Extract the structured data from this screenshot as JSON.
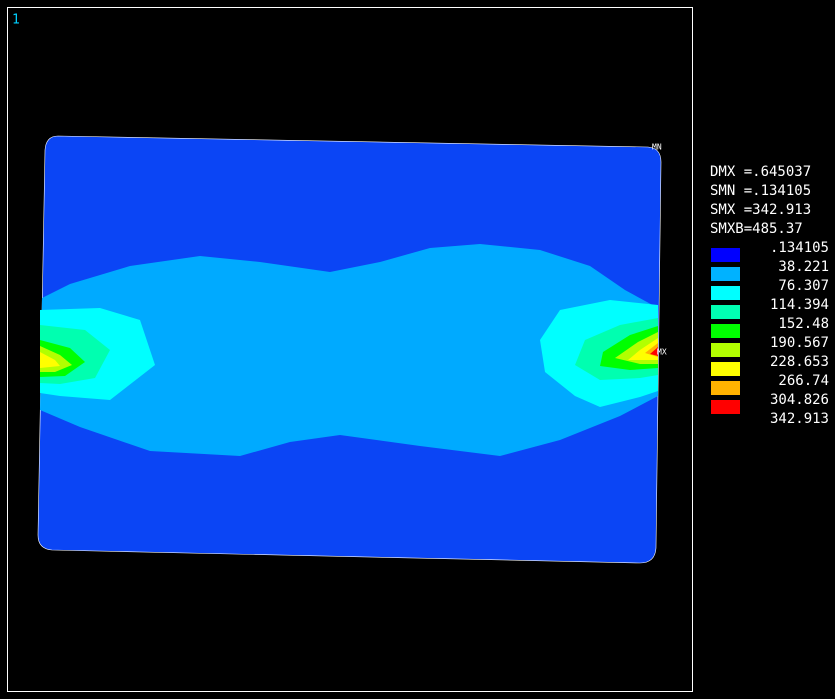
{
  "window": {
    "number": "1"
  },
  "plot": {
    "min_label": "MN",
    "max_label": "MX"
  },
  "stats": [
    "DMX =.645037",
    "SMN =.134105",
    "SMX =342.913",
    "SMXB=485.37"
  ],
  "legend": {
    "values": [
      ".134105",
      "38.221",
      "76.307",
      "114.394",
      "152.48",
      "190.567",
      "228.653",
      "266.74",
      "304.826",
      "342.913"
    ]
  }
}
